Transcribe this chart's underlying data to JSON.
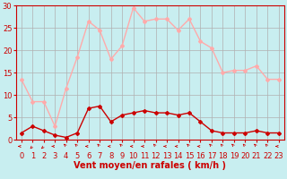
{
  "x": [
    0,
    1,
    2,
    3,
    4,
    5,
    6,
    7,
    8,
    9,
    10,
    11,
    12,
    13,
    14,
    15,
    16,
    17,
    18,
    19,
    20,
    21,
    22,
    23
  ],
  "wind_avg": [
    1.5,
    3,
    2,
    1,
    0.5,
    1.5,
    7,
    7.5,
    4,
    5.5,
    6,
    6.5,
    6,
    6,
    5.5,
    6,
    4,
    2,
    1.5,
    1.5,
    1.5,
    2,
    1.5,
    1.5
  ],
  "wind_gust": [
    13.5,
    8.5,
    8.5,
    3,
    11.5,
    18.5,
    26.5,
    24.5,
    18,
    21,
    29.5,
    26.5,
    27,
    27,
    24.5,
    27,
    22,
    20.5,
    15,
    15.5,
    15.5,
    16.5,
    13.5,
    13.5
  ],
  "wind_dir_angles": [
    270,
    315,
    315,
    270,
    225,
    225,
    270,
    225,
    270,
    225,
    270,
    270,
    225,
    270,
    270,
    225,
    270,
    225,
    225,
    225,
    225,
    225,
    225,
    270
  ],
  "xlim": [
    0,
    23
  ],
  "ylim": [
    0,
    30
  ],
  "yticks": [
    0,
    5,
    10,
    15,
    20,
    25,
    30
  ],
  "xticks": [
    0,
    1,
    2,
    3,
    4,
    5,
    6,
    7,
    8,
    9,
    10,
    11,
    12,
    13,
    14,
    15,
    16,
    17,
    18,
    19,
    20,
    21,
    22,
    23
  ],
  "xlabel": "Vent moyen/en rafales ( km/h )",
  "bg_color": "#c8eef0",
  "grid_color": "#b0b0b0",
  "line_avg_color": "#cc0000",
  "line_gust_color": "#ffaaaa",
  "marker_size": 2,
  "line_width": 1.0,
  "xlabel_color": "#cc0000",
  "xlabel_fontsize": 7,
  "tick_fontsize": 6,
  "axis_color": "#cc0000"
}
